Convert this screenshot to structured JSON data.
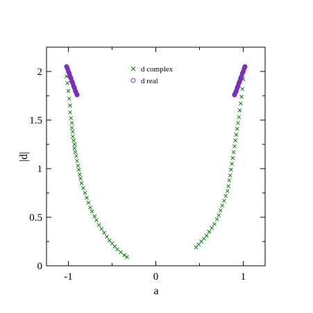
{
  "chart_data": {
    "type": "scatter",
    "title": "",
    "xlabel": "a",
    "ylabel": "|d|",
    "xlim": [
      -1.25,
      1.25
    ],
    "ylim": [
      0,
      2.25
    ],
    "xticks": [
      -1,
      0,
      1
    ],
    "xtick_labels": [
      "-1",
      "0",
      "1"
    ],
    "yticks": [
      0,
      0.5,
      1,
      1.5,
      2
    ],
    "ytick_labels": [
      "0",
      "0.5",
      "1",
      "1.5",
      "2"
    ],
    "grid": false,
    "legend_position": "top-center",
    "series": [
      {
        "name": "d complex",
        "marker": "x",
        "color": "#008000",
        "x": [
          -1.02,
          -1.01,
          -1.0,
          -0.99,
          -0.98,
          -0.98,
          -0.97,
          -0.96,
          -0.96,
          -0.95,
          -0.95,
          -0.94,
          -0.93,
          -0.93,
          -0.92,
          -0.91,
          -0.9,
          -0.89,
          -0.88,
          -0.87,
          -0.86,
          -0.85,
          -0.83,
          -0.81,
          -0.79,
          -0.77,
          -0.75,
          -0.73,
          -0.7,
          -0.68,
          -0.65,
          -0.62,
          -0.59,
          -0.56,
          -0.53,
          -0.5,
          -0.47,
          -0.44,
          -0.4,
          -0.36,
          -0.33,
          0.46,
          0.49,
          0.52,
          0.55,
          0.58,
          0.61,
          0.64,
          0.67,
          0.7,
          0.72,
          0.74,
          0.76,
          0.78,
          0.8,
          0.82,
          0.83,
          0.84,
          0.85,
          0.86,
          0.87,
          0.88,
          0.89,
          0.9,
          0.91,
          0.92,
          0.93,
          0.94,
          0.95,
          0.96,
          0.97,
          0.98,
          0.99,
          1.0
        ],
        "values": [
          1.95,
          1.88,
          1.8,
          1.72,
          1.65,
          1.58,
          1.52,
          1.47,
          1.42,
          1.38,
          1.33,
          1.29,
          1.25,
          1.21,
          1.17,
          1.13,
          1.08,
          1.03,
          0.99,
          0.94,
          0.9,
          0.85,
          0.8,
          0.75,
          0.7,
          0.65,
          0.6,
          0.56,
          0.51,
          0.47,
          0.42,
          0.38,
          0.34,
          0.3,
          0.26,
          0.23,
          0.2,
          0.17,
          0.14,
          0.11,
          0.09,
          0.19,
          0.22,
          0.25,
          0.28,
          0.31,
          0.35,
          0.39,
          0.43,
          0.48,
          0.52,
          0.57,
          0.62,
          0.67,
          0.72,
          0.77,
          0.82,
          0.88,
          0.93,
          0.99,
          1.05,
          1.11,
          1.17,
          1.23,
          1.29,
          1.35,
          1.41,
          1.47,
          1.53,
          1.6,
          1.67,
          1.74,
          1.82,
          1.92
        ]
      },
      {
        "name": "d real",
        "marker": "o",
        "color": "#7b2fbf",
        "x": [
          -1.02,
          -1.01,
          -1.0,
          -0.99,
          -0.98,
          -0.97,
          -0.96,
          -0.95,
          -0.94,
          -0.93,
          -0.92,
          -0.91,
          -0.9,
          0.9,
          0.91,
          0.92,
          0.93,
          0.94,
          0.95,
          0.96,
          0.97,
          0.98,
          0.99,
          1.0,
          1.01,
          1.02
        ],
        "values": [
          2.05,
          2.03,
          2.0,
          1.98,
          1.95,
          1.93,
          1.9,
          1.88,
          1.85,
          1.83,
          1.8,
          1.78,
          1.76,
          1.76,
          1.78,
          1.8,
          1.83,
          1.85,
          1.88,
          1.9,
          1.93,
          1.95,
          1.98,
          2.0,
          2.03,
          2.05
        ]
      }
    ]
  }
}
